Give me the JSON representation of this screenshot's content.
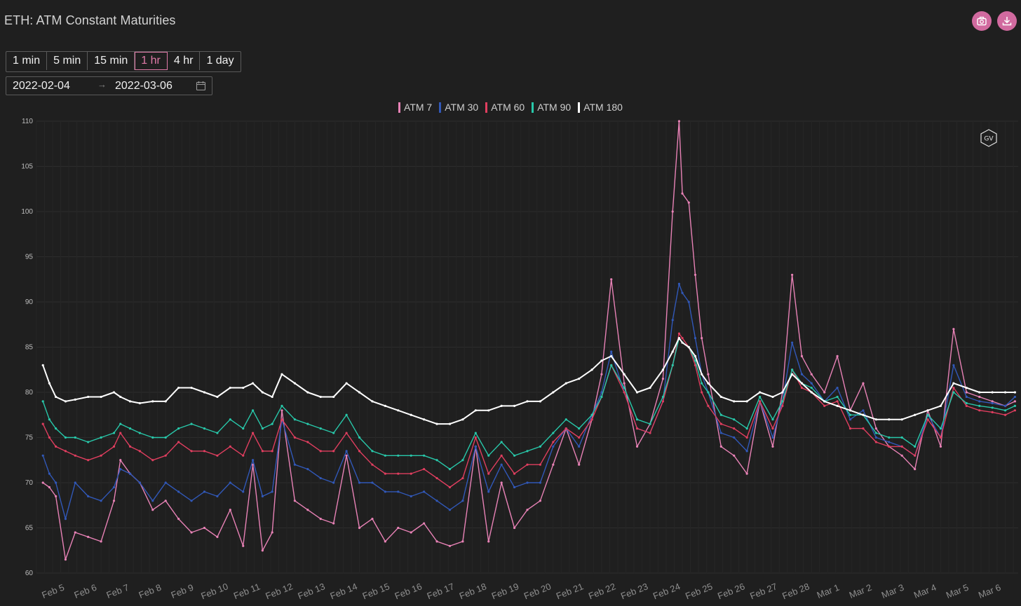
{
  "header": {
    "title": "ETH: ATM Constant Maturities"
  },
  "toolbar": {
    "camera_icon": "camera-icon",
    "download_icon": "download-icon"
  },
  "intervals": [
    {
      "label": "1 min",
      "active": false
    },
    {
      "label": "5 min",
      "active": false
    },
    {
      "label": "15 min",
      "active": false
    },
    {
      "label": "1 hr",
      "active": true
    },
    {
      "label": "4 hr",
      "active": false
    },
    {
      "label": "1 day",
      "active": false
    }
  ],
  "date_range": {
    "start": "2022-02-04",
    "separator": "→",
    "end": "2022-03-06"
  },
  "watermark": "GV",
  "chart_data": {
    "type": "line",
    "ylim": [
      60,
      110
    ],
    "yticks": [
      60,
      65,
      70,
      75,
      80,
      85,
      90,
      95,
      100,
      105,
      110
    ],
    "xlim": [
      0,
      30.4
    ],
    "xticks": [
      {
        "x": 0.55,
        "label": "Feb 5"
      },
      {
        "x": 1.55,
        "label": "Feb 6"
      },
      {
        "x": 2.55,
        "label": "Feb 7"
      },
      {
        "x": 3.55,
        "label": "Feb 8"
      },
      {
        "x": 4.55,
        "label": "Feb 9"
      },
      {
        "x": 5.55,
        "label": "Feb 10"
      },
      {
        "x": 6.55,
        "label": "Feb 11"
      },
      {
        "x": 7.55,
        "label": "Feb 12"
      },
      {
        "x": 8.55,
        "label": "Feb 13"
      },
      {
        "x": 9.55,
        "label": "Feb 14"
      },
      {
        "x": 10.55,
        "label": "Feb 15"
      },
      {
        "x": 11.55,
        "label": "Feb 16"
      },
      {
        "x": 12.55,
        "label": "Feb 17"
      },
      {
        "x": 13.55,
        "label": "Feb 18"
      },
      {
        "x": 14.55,
        "label": "Feb 19"
      },
      {
        "x": 15.55,
        "label": "Feb 20"
      },
      {
        "x": 16.55,
        "label": "Feb 21"
      },
      {
        "x": 17.55,
        "label": "Feb 22"
      },
      {
        "x": 18.55,
        "label": "Feb 23"
      },
      {
        "x": 19.55,
        "label": "Feb 24"
      },
      {
        "x": 20.55,
        "label": "Feb 25"
      },
      {
        "x": 21.55,
        "label": "Feb 26"
      },
      {
        "x": 22.55,
        "label": "Feb 27"
      },
      {
        "x": 23.55,
        "label": "Feb 28"
      },
      {
        "x": 24.55,
        "label": "Mar 1"
      },
      {
        "x": 25.55,
        "label": "Mar 2"
      },
      {
        "x": 26.55,
        "label": "Mar 3"
      },
      {
        "x": 27.55,
        "label": "Mar 4"
      },
      {
        "x": 28.55,
        "label": "Mar 5"
      },
      {
        "x": 29.55,
        "label": "Mar 6"
      }
    ],
    "x": [
      0.2,
      0.4,
      0.6,
      0.9,
      1.2,
      1.6,
      2.0,
      2.4,
      2.6,
      2.9,
      3.2,
      3.6,
      4.0,
      4.4,
      4.8,
      5.2,
      5.6,
      6.0,
      6.4,
      6.7,
      7.0,
      7.3,
      7.6,
      8.0,
      8.4,
      8.8,
      9.2,
      9.6,
      10.0,
      10.4,
      10.8,
      11.2,
      11.6,
      12.0,
      12.4,
      12.8,
      13.2,
      13.6,
      14.0,
      14.4,
      14.8,
      15.2,
      15.6,
      16.0,
      16.4,
      16.8,
      17.2,
      17.5,
      17.8,
      18.2,
      18.6,
      19.0,
      19.4,
      19.7,
      19.9,
      20.0,
      20.2,
      20.4,
      20.6,
      20.8,
      21.2,
      21.6,
      22.0,
      22.4,
      22.8,
      23.1,
      23.4,
      23.7,
      24.0,
      24.4,
      24.8,
      25.2,
      25.6,
      26.0,
      26.4,
      26.8,
      27.2,
      27.6,
      28.0,
      28.4,
      28.8,
      29.2,
      29.6,
      30.0,
      30.3
    ],
    "series": [
      {
        "name": "ATM 7",
        "color": "#e882b6",
        "values": [
          70.0,
          69.5,
          68.5,
          61.5,
          64.5,
          64.0,
          63.5,
          68.0,
          72.5,
          71.0,
          70.0,
          67.0,
          68.0,
          66.0,
          64.5,
          65.0,
          64.0,
          67.0,
          63.0,
          72.0,
          62.5,
          64.5,
          78.0,
          68.0,
          67.0,
          66.0,
          65.5,
          73.0,
          65.0,
          66.0,
          63.5,
          65.0,
          64.5,
          65.5,
          63.5,
          63.0,
          63.5,
          74.0,
          63.5,
          70.0,
          65.0,
          67.0,
          68.0,
          72.0,
          76.0,
          72.0,
          77.0,
          82.0,
          92.5,
          81.0,
          74.0,
          76.5,
          81.5,
          100.0,
          110.0,
          102.0,
          101.0,
          93.0,
          86.0,
          82.0,
          74.0,
          73.0,
          71.0,
          79.0,
          74.0,
          80.0,
          93.0,
          84.0,
          82.0,
          80.0,
          84.0,
          78.0,
          81.0,
          76.0,
          74.0,
          73.0,
          71.5,
          78.0,
          74.0,
          87.0,
          80.0,
          79.5,
          79.0,
          78.5,
          79.0
        ]
      },
      {
        "name": "ATM 30",
        "color": "#3158b8",
        "values": [
          73.0,
          71.0,
          70.0,
          66.0,
          70.0,
          68.5,
          68.0,
          69.5,
          71.5,
          71.0,
          70.0,
          68.0,
          70.0,
          69.0,
          68.0,
          69.0,
          68.5,
          70.0,
          69.0,
          72.5,
          68.5,
          69.0,
          77.0,
          72.0,
          71.5,
          70.5,
          70.0,
          73.5,
          70.0,
          70.0,
          69.0,
          69.0,
          68.5,
          69.0,
          68.0,
          67.0,
          68.0,
          74.0,
          69.0,
          72.0,
          69.5,
          70.0,
          70.0,
          74.0,
          76.0,
          74.0,
          77.5,
          80.0,
          84.5,
          80.0,
          76.0,
          75.5,
          79.0,
          88.0,
          92.0,
          91.0,
          90.0,
          86.0,
          82.0,
          80.0,
          75.5,
          75.0,
          73.5,
          79.0,
          75.0,
          79.0,
          85.5,
          82.0,
          81.0,
          79.0,
          80.5,
          77.0,
          78.0,
          75.0,
          74.5,
          74.0,
          73.0,
          77.5,
          75.0,
          83.0,
          79.5,
          79.0,
          78.8,
          78.5,
          79.5
        ]
      },
      {
        "name": "ATM 60",
        "color": "#e03e5f",
        "values": [
          76.5,
          75.0,
          74.0,
          73.5,
          73.0,
          72.5,
          73.0,
          74.0,
          75.5,
          74.0,
          73.5,
          72.5,
          73.0,
          74.5,
          73.5,
          73.5,
          73.0,
          74.0,
          73.0,
          75.5,
          73.5,
          73.5,
          77.0,
          75.0,
          74.5,
          73.5,
          73.5,
          75.5,
          73.5,
          72.0,
          71.0,
          71.0,
          71.0,
          71.5,
          70.5,
          69.5,
          70.5,
          75.0,
          71.0,
          73.0,
          71.0,
          72.0,
          72.0,
          74.5,
          76.0,
          75.0,
          77.0,
          79.5,
          83.0,
          80.0,
          76.0,
          75.5,
          79.0,
          83.0,
          86.5,
          86.0,
          85.0,
          83.0,
          80.0,
          78.5,
          76.5,
          76.0,
          75.0,
          79.0,
          76.0,
          78.5,
          82.5,
          80.5,
          80.0,
          78.5,
          79.0,
          76.0,
          76.0,
          74.5,
          74.0,
          74.0,
          73.0,
          77.0,
          75.0,
          80.5,
          78.5,
          78.0,
          77.8,
          77.5,
          78.0
        ]
      },
      {
        "name": "ATM 90",
        "color": "#28c8aa",
        "values": [
          79.0,
          77.0,
          76.0,
          75.0,
          75.0,
          74.5,
          75.0,
          75.5,
          76.5,
          76.0,
          75.5,
          75.0,
          75.0,
          76.0,
          76.5,
          76.0,
          75.5,
          77.0,
          76.0,
          78.0,
          76.0,
          76.5,
          78.5,
          77.0,
          76.5,
          76.0,
          75.5,
          77.5,
          75.0,
          73.5,
          73.0,
          73.0,
          73.0,
          73.0,
          72.5,
          71.5,
          72.5,
          75.5,
          73.0,
          74.5,
          73.0,
          73.5,
          74.0,
          75.5,
          77.0,
          76.0,
          77.5,
          79.5,
          83.0,
          80.5,
          77.0,
          76.5,
          79.5,
          83.0,
          86.0,
          85.5,
          85.0,
          83.5,
          81.0,
          80.0,
          77.5,
          77.0,
          76.0,
          79.5,
          77.0,
          79.0,
          82.5,
          81.0,
          80.5,
          79.0,
          79.5,
          77.5,
          77.5,
          75.5,
          75.0,
          75.0,
          74.0,
          77.5,
          76.0,
          80.0,
          78.8,
          78.5,
          78.3,
          78.0,
          78.5
        ]
      },
      {
        "name": "ATM 180",
        "color": "#ffffff",
        "values": [
          83.0,
          81.0,
          79.5,
          79.0,
          79.2,
          79.5,
          79.5,
          80.0,
          79.5,
          79.0,
          78.8,
          79.0,
          79.0,
          80.5,
          80.5,
          80.0,
          79.5,
          80.5,
          80.5,
          81.0,
          80.0,
          79.5,
          82.0,
          81.0,
          80.0,
          79.5,
          79.5,
          81.0,
          80.0,
          79.0,
          78.5,
          78.0,
          77.5,
          77.0,
          76.5,
          76.5,
          77.0,
          78.0,
          78.0,
          78.5,
          78.5,
          79.0,
          79.0,
          80.0,
          81.0,
          81.5,
          82.5,
          83.5,
          84.0,
          82.0,
          80.0,
          80.5,
          82.5,
          84.5,
          86.0,
          85.5,
          85.0,
          84.0,
          82.0,
          81.0,
          79.5,
          79.0,
          79.0,
          80.0,
          79.5,
          80.0,
          82.0,
          81.0,
          80.0,
          79.0,
          78.5,
          78.0,
          77.5,
          77.0,
          77.0,
          77.0,
          77.5,
          78.0,
          78.5,
          81.0,
          80.5,
          80.0,
          80.0,
          80.0,
          80.0
        ]
      }
    ]
  }
}
